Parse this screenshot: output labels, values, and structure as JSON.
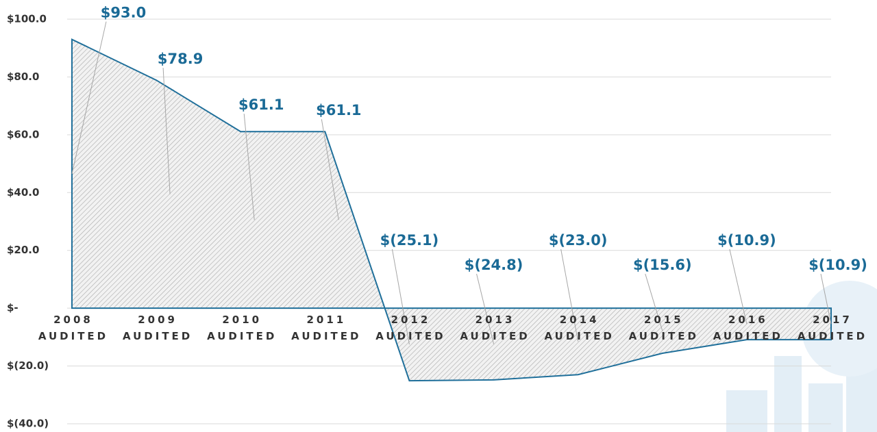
{
  "chart_data": {
    "type": "area",
    "categories": [
      "2008\nAUDITED",
      "2009\nAUDITED",
      "2010\nAUDITED",
      "2011\nAUDITED",
      "2012\nAUDITED",
      "2013\nAUDITED",
      "2014\nAUDITED",
      "2015\nAUDITED",
      "2016\nAUDITED",
      "2017\nAUDITED"
    ],
    "values": [
      93.0,
      78.9,
      61.1,
      61.1,
      -25.1,
      -24.8,
      -23.0,
      -15.6,
      -10.9,
      -10.9
    ],
    "value_labels": [
      "$93.0",
      "$78.9",
      "$61.1",
      "$61.1",
      "$(25.1)",
      "$(24.8)",
      "$(23.0)",
      "$(15.6)",
      "$(10.9)",
      "$(10.9)"
    ],
    "color": "#1f6f9a",
    "ylim": [
      -40,
      100
    ],
    "yticks": [
      {
        "value": -40,
        "label": "$(40.0)"
      },
      {
        "value": -20,
        "label": "$(20.0)"
      },
      {
        "value": 0,
        "label": "$-"
      },
      {
        "value": 20,
        "label": "$20.0"
      },
      {
        "value": 40,
        "label": "$40.0"
      },
      {
        "value": 60,
        "label": "$60.0"
      },
      {
        "value": 80,
        "label": "$80.0"
      },
      {
        "value": 100,
        "label": "$100.0"
      }
    ],
    "grid": true
  }
}
